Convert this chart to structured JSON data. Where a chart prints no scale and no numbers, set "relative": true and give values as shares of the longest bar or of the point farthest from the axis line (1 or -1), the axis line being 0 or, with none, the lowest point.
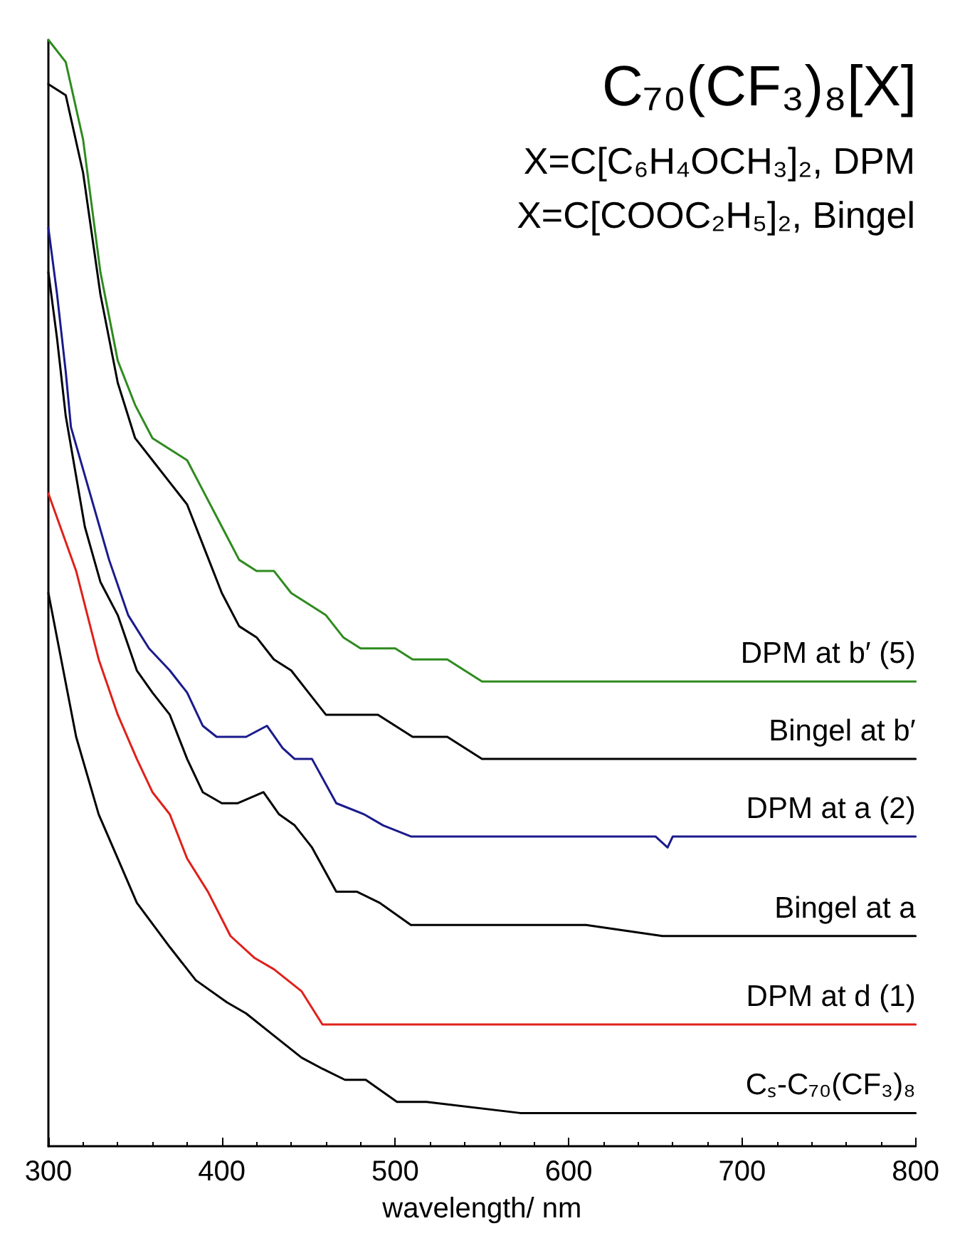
{
  "chart_data": {
    "type": "line",
    "title": "C₇₀(CF₃)₈[X]",
    "annotations": [
      "X=C[C₆H₄OCH₃]₂, DPM",
      "X=C[COOC₂H₅]₂, Bingel"
    ],
    "xlabel": "wavelength/ nm",
    "xlim": [
      300,
      800
    ],
    "xticks": [
      300,
      400,
      500,
      600,
      700,
      800
    ],
    "relative": true,
    "grid": false,
    "legend": false,
    "marker": "none",
    "line_style": "solid",
    "series": [
      {
        "name": "DPM at b′ (5)",
        "color": "#2e8b1e",
        "x": [
          300,
          310,
          320,
          330,
          340,
          350,
          360,
          370,
          380,
          390,
          400,
          410,
          420,
          430,
          440,
          450,
          460,
          470,
          480,
          490,
          500,
          510,
          520,
          530,
          540,
          550,
          560,
          600,
          700,
          800
        ],
        "values": [
          1.0,
          0.98,
          0.91,
          0.79,
          0.71,
          0.67,
          0.64,
          0.63,
          0.62,
          0.59,
          0.56,
          0.53,
          0.52,
          0.52,
          0.5,
          0.49,
          0.48,
          0.46,
          0.45,
          0.45,
          0.45,
          0.44,
          0.44,
          0.44,
          0.43,
          0.42,
          0.42,
          0.42,
          0.42,
          0.42
        ]
      },
      {
        "name": "Bingel at b′",
        "color": "#000000",
        "x": [
          300,
          310,
          320,
          330,
          340,
          350,
          360,
          370,
          380,
          390,
          400,
          410,
          420,
          430,
          440,
          450,
          460,
          470,
          480,
          490,
          500,
          510,
          520,
          530,
          540,
          550,
          600,
          800
        ],
        "values": [
          0.96,
          0.95,
          0.88,
          0.77,
          0.69,
          0.64,
          0.62,
          0.6,
          0.58,
          0.54,
          0.5,
          0.47,
          0.46,
          0.44,
          0.43,
          0.41,
          0.39,
          0.39,
          0.39,
          0.39,
          0.38,
          0.37,
          0.37,
          0.37,
          0.36,
          0.35,
          0.35,
          0.35
        ]
      },
      {
        "name": "DPM at a (2)",
        "color": "#1a1a8c",
        "x": [
          300,
          305,
          310,
          313,
          324,
          335,
          346,
          358,
          370,
          380,
          389,
          397,
          405,
          414,
          426,
          435,
          442,
          452,
          466,
          482,
          493,
          509,
          550,
          600,
          650,
          657,
          660,
          700,
          800
        ],
        "values": [
          0.83,
          0.77,
          0.7,
          0.65,
          0.59,
          0.53,
          0.48,
          0.45,
          0.43,
          0.41,
          0.38,
          0.37,
          0.37,
          0.37,
          0.38,
          0.36,
          0.35,
          0.35,
          0.31,
          0.3,
          0.29,
          0.28,
          0.28,
          0.28,
          0.28,
          0.27,
          0.28,
          0.28,
          0.28
        ]
      },
      {
        "name": "Bingel at a",
        "color": "#000000",
        "x": [
          300,
          305,
          310,
          321,
          330,
          340,
          351,
          360,
          370,
          380,
          389,
          400,
          409,
          424,
          433,
          442,
          452,
          466,
          478,
          491,
          509,
          567,
          610,
          654,
          800
        ],
        "values": [
          0.79,
          0.73,
          0.66,
          0.56,
          0.51,
          0.48,
          0.43,
          0.41,
          0.39,
          0.35,
          0.32,
          0.31,
          0.31,
          0.32,
          0.3,
          0.29,
          0.27,
          0.23,
          0.23,
          0.22,
          0.2,
          0.2,
          0.2,
          0.19,
          0.19
        ]
      },
      {
        "name": "DPM at d (1)",
        "color": "#e0201a",
        "x": [
          300,
          316,
          329,
          340,
          351,
          360,
          370,
          380,
          392,
          405,
          419,
          430,
          446,
          458,
          467,
          474,
          800
        ],
        "values": [
          0.59,
          0.52,
          0.44,
          0.39,
          0.35,
          0.32,
          0.3,
          0.26,
          0.23,
          0.19,
          0.17,
          0.16,
          0.14,
          0.11,
          0.11,
          0.11,
          0.11
        ]
      },
      {
        "name": "Cₛ-C₇₀(CF₃)₈",
        "color": "#000000",
        "x": [
          300,
          316,
          329,
          340,
          351,
          370,
          385,
          403,
          414,
          430,
          446,
          458,
          471,
          483,
          501,
          518,
          572,
          649,
          800
        ],
        "values": [
          0.5,
          0.37,
          0.3,
          0.26,
          0.22,
          0.18,
          0.15,
          0.13,
          0.12,
          0.1,
          0.08,
          0.07,
          0.06,
          0.06,
          0.04,
          0.04,
          0.03,
          0.03,
          0.03
        ]
      }
    ]
  }
}
